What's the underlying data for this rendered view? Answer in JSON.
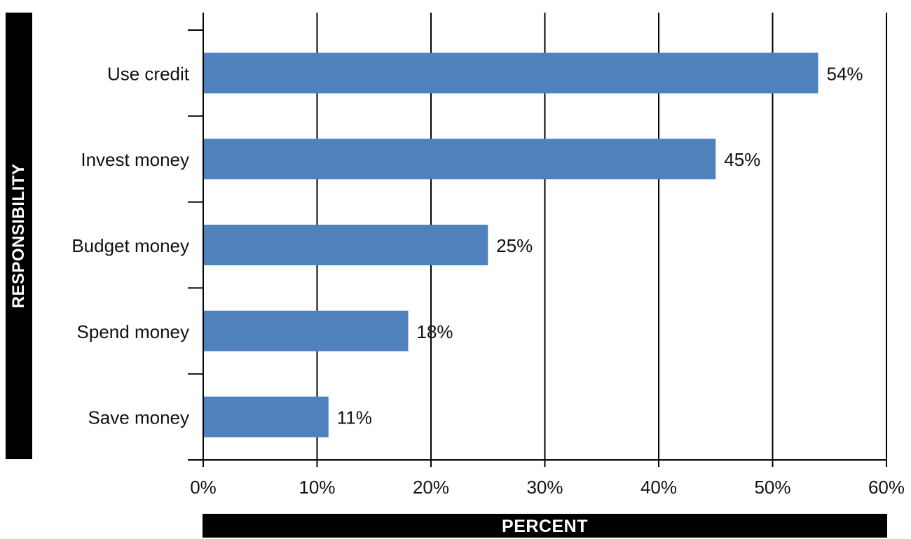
{
  "chart_data": {
    "type": "bar",
    "orientation": "horizontal",
    "categories": [
      "Use credit",
      "Invest money",
      "Budget money",
      "Spend money",
      "Save money"
    ],
    "values": [
      54,
      45,
      25,
      18,
      11
    ],
    "data_labels": [
      "54%",
      "45%",
      "25%",
      "18%",
      "11%"
    ],
    "xlabel": "PERCENT",
    "ylabel": "RESPONSIBILITY",
    "xlim": [
      0,
      60
    ],
    "x_ticks": [
      0,
      10,
      20,
      30,
      40,
      50,
      60
    ],
    "x_tick_labels": [
      "0%",
      "10%",
      "20%",
      "30%",
      "40%",
      "50%",
      "60%"
    ],
    "grid": "vertical",
    "colors": {
      "bar": "#4f81bd",
      "grid": "#000000",
      "title_box": "#000000",
      "title_text": "#ffffff"
    }
  }
}
